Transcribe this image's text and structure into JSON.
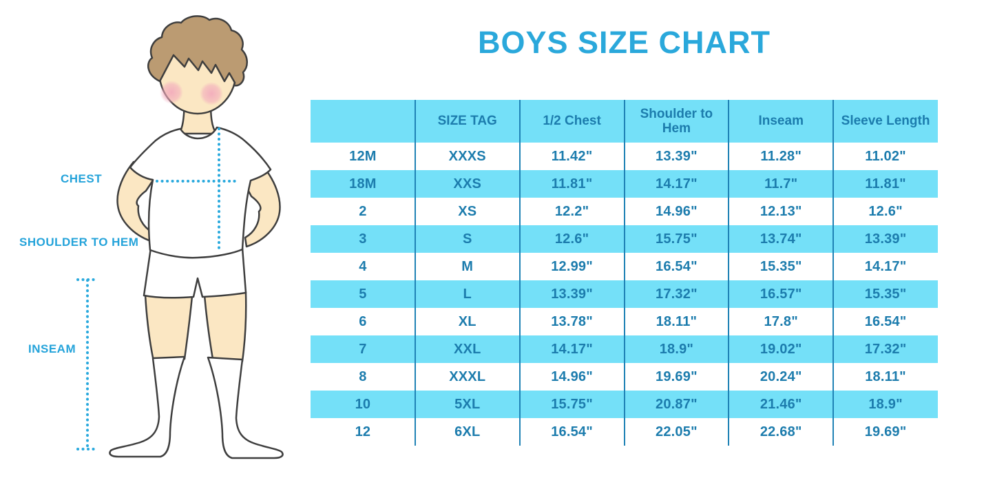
{
  "page": {
    "title": "BOYS SIZE CHART"
  },
  "figure_labels": {
    "chest": "CHEST",
    "shoulder_to_hem": "SHOULDER TO HEM",
    "inseam": "INSEAM"
  },
  "colors": {
    "accent_blue": "#2AA8DB",
    "stripe_blue": "#74E0F8",
    "table_text_blue": "#1C7CAD",
    "divider_blue": "#1F82B5",
    "skin": "#FBE7C3",
    "hair": "#BB9B72",
    "cheek": "#F2A9BC",
    "outline": "#3E3E3E"
  },
  "chart_data": {
    "type": "table",
    "title": "BOYS SIZE CHART",
    "columns": [
      "",
      "SIZE TAG",
      "1/2 Chest",
      "Shoulder to Hem",
      "Inseam",
      "Sleeve Length"
    ],
    "rows": [
      [
        "12M",
        "XXXS",
        "11.42\"",
        "13.39\"",
        "11.28\"",
        "11.02\""
      ],
      [
        "18M",
        "XXS",
        "11.81\"",
        "14.17\"",
        "11.7\"",
        "11.81\""
      ],
      [
        "2",
        "XS",
        "12.2\"",
        "14.96\"",
        "12.13\"",
        "12.6\""
      ],
      [
        "3",
        "S",
        "12.6\"",
        "15.75\"",
        "13.74\"",
        "13.39\""
      ],
      [
        "4",
        "M",
        "12.99\"",
        "16.54\"",
        "15.35\"",
        "14.17\""
      ],
      [
        "5",
        "L",
        "13.39\"",
        "17.32\"",
        "16.57\"",
        "15.35\""
      ],
      [
        "6",
        "XL",
        "13.78\"",
        "18.11\"",
        "17.8\"",
        "16.54\""
      ],
      [
        "7",
        "XXL",
        "14.17\"",
        "18.9\"",
        "19.02\"",
        "17.32\""
      ],
      [
        "8",
        "XXXL",
        "14.96\"",
        "19.69\"",
        "20.24\"",
        "18.11\""
      ],
      [
        "10",
        "5XL",
        "15.75\"",
        "20.87\"",
        "21.46\"",
        "18.9\""
      ],
      [
        "12",
        "6XL",
        "16.54\"",
        "22.05\"",
        "22.68\"",
        "19.69\""
      ]
    ]
  }
}
